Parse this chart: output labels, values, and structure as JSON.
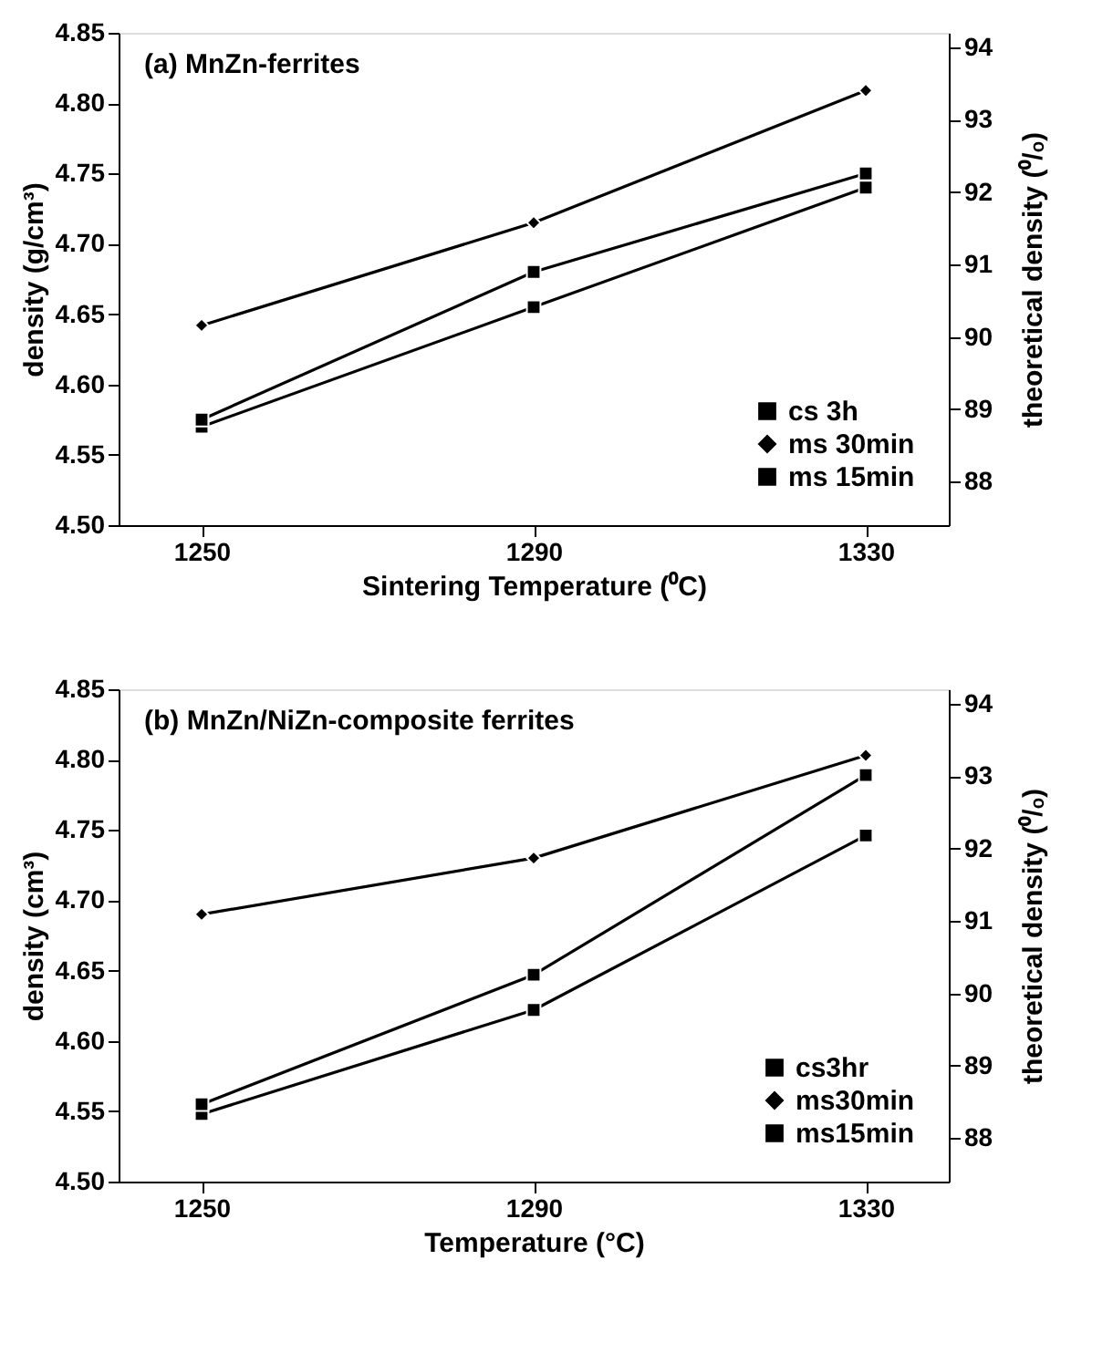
{
  "chart_data": [
    {
      "type": "line",
      "annotations": [
        "(a) MnZn-ferrites"
      ],
      "xlabel": "Sintering Temperature (⁰C)",
      "ylabel": "density (g/cm³)",
      "y2label": "theoretical density (⁰/ₒ)",
      "x": [
        1250,
        1290,
        1330
      ],
      "xlim": [
        1240,
        1340
      ],
      "xticks": [
        1250,
        1290,
        1330
      ],
      "ylim": [
        4.5,
        4.85
      ],
      "yticks": [
        {
          "value": 4.5,
          "label": "4.50"
        },
        {
          "value": 4.55,
          "label": "4.55"
        },
        {
          "value": 4.6,
          "label": "4.60"
        },
        {
          "value": 4.65,
          "label": "4.65"
        },
        {
          "value": 4.7,
          "label": "4.70"
        },
        {
          "value": 4.75,
          "label": "4.75"
        },
        {
          "value": 4.8,
          "label": "4.80"
        },
        {
          "value": 4.85,
          "label": "4.85"
        }
      ],
      "y2lim": [
        87.4,
        94.2
      ],
      "y2ticks": [
        88,
        89,
        90,
        91,
        92,
        93,
        94
      ],
      "series": [
        {
          "name": "cs 3h",
          "color": "#000000",
          "marker": "square",
          "values": [
            4.575,
            4.68,
            4.75
          ]
        },
        {
          "name": "ms 30min",
          "color": "#000000",
          "marker": "diamond",
          "values": [
            4.642,
            4.715,
            4.809
          ]
        },
        {
          "name": "ms 15min",
          "color": "#000000",
          "marker": "square",
          "values": [
            4.57,
            4.655,
            4.74
          ]
        }
      ],
      "grid": false,
      "legend": "bottom right",
      "line_style": "solid"
    },
    {
      "type": "line",
      "annotations": [
        "(b) MnZn/NiZn-composite ferrites"
      ],
      "xlabel": "Temperature (°C)",
      "ylabel": "density (cm³)",
      "y2label": "theoretical density (⁰/ₒ)",
      "x": [
        1250,
        1290,
        1330
      ],
      "xlim": [
        1240,
        1340
      ],
      "xticks": [
        1250,
        1290,
        1330
      ],
      "ylim": [
        4.5,
        4.85
      ],
      "yticks": [
        {
          "value": 4.5,
          "label": "4.50"
        },
        {
          "value": 4.55,
          "label": "4.55"
        },
        {
          "value": 4.6,
          "label": "4.60"
        },
        {
          "value": 4.65,
          "label": "4.65"
        },
        {
          "value": 4.7,
          "label": "4.70"
        },
        {
          "value": 4.75,
          "label": "4.75"
        },
        {
          "value": 4.8,
          "label": "4.80"
        },
        {
          "value": 4.85,
          "label": "4.85"
        }
      ],
      "y2lim": [
        87.4,
        94.2
      ],
      "y2ticks": [
        88,
        89,
        90,
        91,
        92,
        93,
        94
      ],
      "series": [
        {
          "name": "cs3hr",
          "color": "#000000",
          "marker": "square",
          "values": [
            4.555,
            4.647,
            4.789
          ]
        },
        {
          "name": "ms30min",
          "color": "#000000",
          "marker": "diamond",
          "values": [
            4.69,
            4.73,
            4.803
          ]
        },
        {
          "name": "ms15min",
          "color": "#000000",
          "marker": "square",
          "values": [
            4.548,
            4.622,
            4.746
          ]
        }
      ],
      "grid": false,
      "legend": "bottom right",
      "line_style": "solid"
    }
  ]
}
